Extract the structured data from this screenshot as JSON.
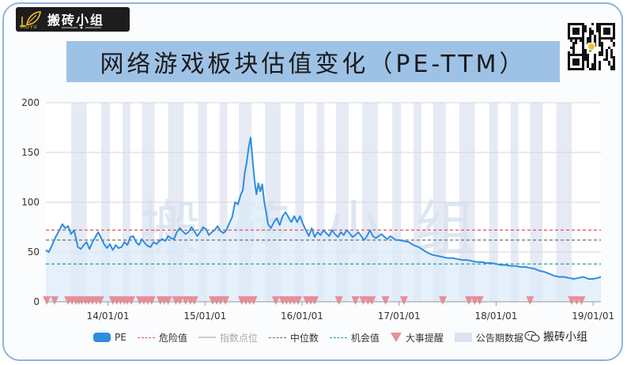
{
  "brand": {
    "name": "搬砖小组",
    "sub": "MOYU"
  },
  "title": "网络游戏板块估值变化（PE-TTM）",
  "watermark": "搬砖小组",
  "footer_tag": "搬砖小组",
  "colors": {
    "pe": "#2f8de0",
    "pe_fill": "#dcebf9",
    "danger": "#e05050",
    "median": "#6d6d6d",
    "opportunity": "#1a9e9a",
    "event": "#ea8e98",
    "band": "#e6eaf4",
    "banner": "#9ec2e6"
  },
  "legend": [
    {
      "key": "pe",
      "label": "PE",
      "muted": false
    },
    {
      "key": "danger",
      "label": "危险值",
      "muted": false
    },
    {
      "key": "index",
      "label": "指数点位",
      "muted": true
    },
    {
      "key": "median",
      "label": "中位数",
      "muted": false
    },
    {
      "key": "opportunity",
      "label": "机会值",
      "muted": false
    },
    {
      "key": "event",
      "label": "大事提醒",
      "muted": false
    },
    {
      "key": "band",
      "label": "公告期数据",
      "muted": false
    }
  ],
  "chart_data": {
    "type": "line",
    "ylim": [
      0,
      200
    ],
    "yticks": [
      0,
      50,
      100,
      150,
      200
    ],
    "xlim": [
      2013.36,
      2019.08
    ],
    "xticks": [
      {
        "label": "14/01/01",
        "value": 2014.0
      },
      {
        "label": "15/01/01",
        "value": 2015.0
      },
      {
        "label": "16/01/01",
        "value": 2016.0
      },
      {
        "label": "17/01/01",
        "value": 2017.0
      },
      {
        "label": "18/01/01",
        "value": 2018.0
      },
      {
        "label": "19/01/01",
        "value": 2019.0
      }
    ],
    "reference_lines": [
      {
        "name": "危险值",
        "value": 72
      },
      {
        "name": "中位数",
        "value": 62
      },
      {
        "name": "机会值",
        "value": 38
      }
    ],
    "announcement_bands": [
      [
        2013.62,
        2013.78
      ],
      [
        2013.93,
        2014.02
      ],
      [
        2014.15,
        2014.23
      ],
      [
        2014.35,
        2014.48
      ],
      [
        2014.62,
        2014.78
      ],
      [
        2014.93,
        2015.02
      ],
      [
        2015.15,
        2015.23
      ],
      [
        2015.35,
        2015.48
      ],
      [
        2015.62,
        2015.78
      ],
      [
        2015.93,
        2016.02
      ],
      [
        2016.15,
        2016.23
      ],
      [
        2016.35,
        2016.48
      ],
      [
        2016.62,
        2016.78
      ],
      [
        2016.93,
        2017.02
      ],
      [
        2017.15,
        2017.23
      ],
      [
        2017.35,
        2017.48
      ],
      [
        2017.62,
        2017.78
      ],
      [
        2017.93,
        2018.02
      ],
      [
        2018.15,
        2018.23
      ],
      [
        2018.35,
        2018.48
      ],
      [
        2018.62,
        2018.78
      ]
    ],
    "events": [
      2013.37,
      2013.45,
      2013.59,
      2013.63,
      2013.67,
      2013.7,
      2013.73,
      2013.77,
      2013.8,
      2013.84,
      2013.88,
      2013.92,
      2014.05,
      2014.09,
      2014.13,
      2014.17,
      2014.2,
      2014.24,
      2014.33,
      2014.37,
      2014.41,
      2014.45,
      2014.54,
      2014.58,
      2014.62,
      2014.7,
      2014.74,
      2014.8,
      2014.85,
      2014.89,
      2015.08,
      2015.12,
      2015.16,
      2015.21,
      2015.38,
      2015.42,
      2015.46,
      2015.5,
      2015.73,
      2015.8,
      2015.84,
      2015.88,
      2015.92,
      2015.96,
      2016.05,
      2016.09,
      2016.13,
      2016.38,
      2016.55,
      2016.63,
      2016.68,
      2016.72,
      2016.86,
      2017.05,
      2017.45,
      2017.72,
      2017.78,
      2017.83,
      2018.35,
      2018.78,
      2018.83,
      2018.88
    ],
    "series": [
      {
        "points": [
          [
            2013.36,
            52
          ],
          [
            2013.39,
            50
          ],
          [
            2013.42,
            56
          ],
          [
            2013.46,
            65
          ],
          [
            2013.5,
            72
          ],
          [
            2013.53,
            78
          ],
          [
            2013.56,
            74
          ],
          [
            2013.59,
            76
          ],
          [
            2013.62,
            68
          ],
          [
            2013.65,
            72
          ],
          [
            2013.67,
            64
          ],
          [
            2013.69,
            55
          ],
          [
            2013.72,
            53
          ],
          [
            2013.75,
            57
          ],
          [
            2013.78,
            60
          ],
          [
            2013.81,
            53
          ],
          [
            2013.84,
            60
          ],
          [
            2013.87,
            65
          ],
          [
            2013.9,
            70
          ],
          [
            2013.93,
            64
          ],
          [
            2013.96,
            58
          ],
          [
            2013.99,
            54
          ],
          [
            2014.02,
            58
          ],
          [
            2014.05,
            52
          ],
          [
            2014.08,
            57
          ],
          [
            2014.11,
            54
          ],
          [
            2014.14,
            55
          ],
          [
            2014.17,
            60
          ],
          [
            2014.2,
            57
          ],
          [
            2014.23,
            65
          ],
          [
            2014.26,
            66
          ],
          [
            2014.29,
            60
          ],
          [
            2014.32,
            57
          ],
          [
            2014.35,
            63
          ],
          [
            2014.38,
            59
          ],
          [
            2014.41,
            56
          ],
          [
            2014.44,
            55
          ],
          [
            2014.47,
            60
          ],
          [
            2014.5,
            58
          ],
          [
            2014.53,
            61
          ],
          [
            2014.56,
            63
          ],
          [
            2014.59,
            61
          ],
          [
            2014.62,
            66
          ],
          [
            2014.65,
            64
          ],
          [
            2014.68,
            63
          ],
          [
            2014.71,
            70
          ],
          [
            2014.74,
            74
          ],
          [
            2014.77,
            71
          ],
          [
            2014.8,
            68
          ],
          [
            2014.83,
            70
          ],
          [
            2014.86,
            75
          ],
          [
            2014.89,
            71
          ],
          [
            2014.92,
            66
          ],
          [
            2014.95,
            70
          ],
          [
            2014.98,
            75
          ],
          [
            2015.01,
            73
          ],
          [
            2015.04,
            67
          ],
          [
            2015.07,
            70
          ],
          [
            2015.1,
            72
          ],
          [
            2015.13,
            76
          ],
          [
            2015.16,
            71
          ],
          [
            2015.19,
            69
          ],
          [
            2015.22,
            72
          ],
          [
            2015.25,
            79
          ],
          [
            2015.28,
            85
          ],
          [
            2015.31,
            100
          ],
          [
            2015.34,
            98
          ],
          [
            2015.37,
            108
          ],
          [
            2015.39,
            112
          ],
          [
            2015.41,
            130
          ],
          [
            2015.43,
            140
          ],
          [
            2015.45,
            155
          ],
          [
            2015.47,
            165
          ],
          [
            2015.49,
            143
          ],
          [
            2015.51,
            122
          ],
          [
            2015.53,
            108
          ],
          [
            2015.55,
            119
          ],
          [
            2015.57,
            111
          ],
          [
            2015.59,
            118
          ],
          [
            2015.61,
            101
          ],
          [
            2015.63,
            90
          ],
          [
            2015.65,
            78
          ],
          [
            2015.68,
            74
          ],
          [
            2015.71,
            80
          ],
          [
            2015.74,
            84
          ],
          [
            2015.77,
            77
          ],
          [
            2015.8,
            86
          ],
          [
            2015.83,
            90
          ],
          [
            2015.86,
            85
          ],
          [
            2015.89,
            80
          ],
          [
            2015.92,
            86
          ],
          [
            2015.95,
            80
          ],
          [
            2015.98,
            86
          ],
          [
            2016.01,
            78
          ],
          [
            2016.04,
            72
          ],
          [
            2016.07,
            66
          ],
          [
            2016.1,
            74
          ],
          [
            2016.13,
            65
          ],
          [
            2016.16,
            70
          ],
          [
            2016.19,
            67
          ],
          [
            2016.22,
            72
          ],
          [
            2016.25,
            69
          ],
          [
            2016.28,
            66
          ],
          [
            2016.31,
            72
          ],
          [
            2016.34,
            68
          ],
          [
            2016.37,
            65
          ],
          [
            2016.4,
            70
          ],
          [
            2016.43,
            67
          ],
          [
            2016.46,
            72
          ],
          [
            2016.49,
            69
          ],
          [
            2016.52,
            65
          ],
          [
            2016.55,
            67
          ],
          [
            2016.58,
            70
          ],
          [
            2016.61,
            66
          ],
          [
            2016.64,
            62
          ],
          [
            2016.67,
            66
          ],
          [
            2016.7,
            72
          ],
          [
            2016.73,
            66
          ],
          [
            2016.76,
            64
          ],
          [
            2016.79,
            66
          ],
          [
            2016.82,
            68
          ],
          [
            2016.85,
            65
          ],
          [
            2016.88,
            63
          ],
          [
            2016.91,
            66
          ],
          [
            2016.94,
            64
          ],
          [
            2016.97,
            62
          ],
          [
            2017.0,
            62
          ],
          [
            2017.05,
            61
          ],
          [
            2017.1,
            60
          ],
          [
            2017.15,
            57
          ],
          [
            2017.2,
            55
          ],
          [
            2017.25,
            52
          ],
          [
            2017.3,
            49
          ],
          [
            2017.35,
            47
          ],
          [
            2017.4,
            46
          ],
          [
            2017.45,
            45
          ],
          [
            2017.5,
            44
          ],
          [
            2017.55,
            44
          ],
          [
            2017.6,
            43
          ],
          [
            2017.65,
            42
          ],
          [
            2017.7,
            42
          ],
          [
            2017.75,
            41
          ],
          [
            2017.8,
            40
          ],
          [
            2017.85,
            40
          ],
          [
            2017.9,
            39
          ],
          [
            2017.95,
            39
          ],
          [
            2018.0,
            38
          ],
          [
            2018.05,
            37
          ],
          [
            2018.1,
            37
          ],
          [
            2018.15,
            36
          ],
          [
            2018.2,
            36
          ],
          [
            2018.25,
            35
          ],
          [
            2018.3,
            35
          ],
          [
            2018.35,
            34
          ],
          [
            2018.4,
            33
          ],
          [
            2018.45,
            31
          ],
          [
            2018.5,
            30
          ],
          [
            2018.55,
            28
          ],
          [
            2018.6,
            26
          ],
          [
            2018.65,
            25
          ],
          [
            2018.7,
            25
          ],
          [
            2018.75,
            24
          ],
          [
            2018.8,
            23
          ],
          [
            2018.85,
            24
          ],
          [
            2018.9,
            25
          ],
          [
            2018.95,
            23
          ],
          [
            2019.0,
            23
          ],
          [
            2019.05,
            24
          ],
          [
            2019.08,
            25
          ]
        ]
      }
    ]
  }
}
